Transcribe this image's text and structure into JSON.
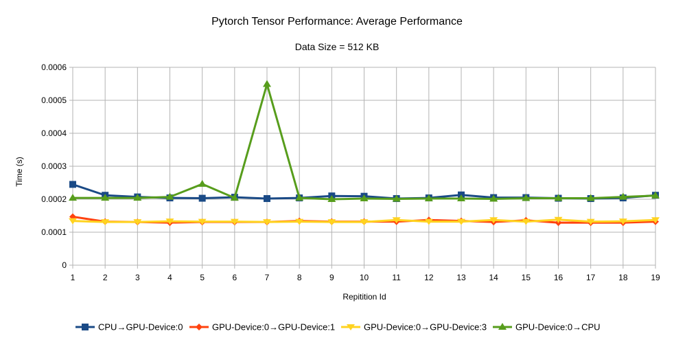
{
  "chart_data": {
    "type": "line",
    "title": "Pytorch Tensor Performance: Average Performance",
    "subtitle": "Data Size = 512 KB",
    "xlabel": "Repitition Id",
    "ylabel": "Time (s)",
    "x": [
      1,
      2,
      3,
      4,
      5,
      6,
      7,
      8,
      9,
      10,
      11,
      12,
      13,
      14,
      15,
      16,
      17,
      18,
      19
    ],
    "ylim": [
      0,
      0.0006
    ],
    "yticks": [
      "0",
      "0.0001",
      "0.0002",
      "0.0003",
      "0.0004",
      "0.0005",
      "0.0006"
    ],
    "yticks_values": [
      0,
      0.0001,
      0.0002,
      0.0003,
      0.0004,
      0.0005,
      0.0006
    ],
    "grid": true,
    "legend_position": "bottom",
    "series": [
      {
        "name": "CPU→GPU-Device:0",
        "color": "#1a4a86",
        "marker": "square",
        "values": [
          0.000245,
          0.000212,
          0.000207,
          0.000204,
          0.000203,
          0.000206,
          0.000202,
          0.000204,
          0.00021,
          0.000209,
          0.000202,
          0.000204,
          0.000213,
          0.000205,
          0.000205,
          0.000203,
          0.000202,
          0.000204,
          0.000212
        ]
      },
      {
        "name": "GPU-Device:0→GPU-Device:1",
        "color": "#ff420e",
        "marker": "diamond",
        "values": [
          0.000147,
          0.000132,
          0.000131,
          0.000129,
          0.000131,
          0.000131,
          0.000131,
          0.000134,
          0.000132,
          0.000132,
          0.000132,
          0.000137,
          0.000134,
          0.000131,
          0.000136,
          0.000129,
          0.000129,
          0.000129,
          0.000132
        ]
      },
      {
        "name": "GPU-Device:0→GPU-Device:3",
        "color": "#ffd320",
        "marker": "triangle-down",
        "values": [
          0.000134,
          0.000131,
          0.000131,
          0.000133,
          0.000132,
          0.000132,
          0.000131,
          0.000132,
          0.000131,
          0.000131,
          0.000137,
          0.000132,
          0.000132,
          0.000137,
          0.000132,
          0.000138,
          0.000132,
          0.000133,
          0.000137
        ]
      },
      {
        "name": "GPU-Device:0→CPU",
        "color": "#579d1c",
        "marker": "triangle-up",
        "values": [
          0.000204,
          0.000204,
          0.000204,
          0.000207,
          0.000246,
          0.000204,
          0.000549,
          0.000204,
          0.0002,
          0.000202,
          0.000201,
          0.000202,
          0.000202,
          0.000201,
          0.000203,
          0.000203,
          0.000203,
          0.000207,
          0.000211
        ]
      }
    ]
  }
}
